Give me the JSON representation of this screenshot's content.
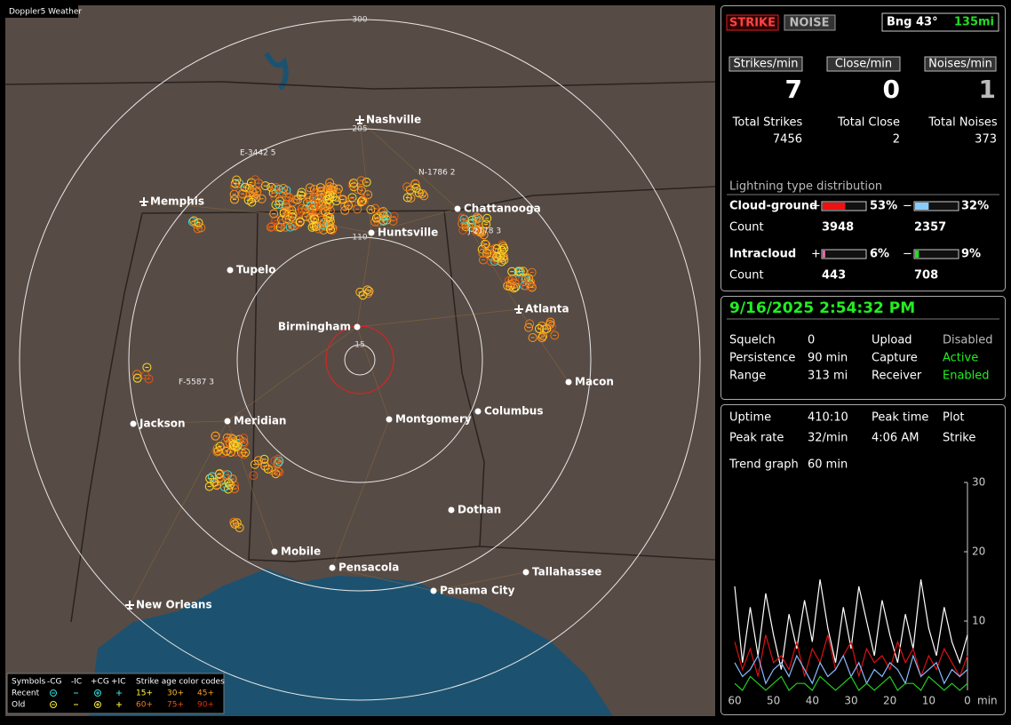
{
  "header": {
    "label": "Doppler5 Weather"
  },
  "map": {
    "rings": [
      "300",
      "205",
      "110",
      "15"
    ],
    "cities": [
      "Nashville",
      "Memphis",
      "Chattanooga",
      "Huntsville",
      "Tupelo",
      "Birmingham",
      "Atlanta",
      "Macon",
      "Jackson",
      "Meridian",
      "Montgomery",
      "Columbus",
      "Dothan",
      "Mobile",
      "Pensacola",
      "Tallahassee",
      "Panama City",
      "New Orleans"
    ],
    "cells": [
      "E-3442 5",
      "N-1786 2",
      "J-2178 3",
      "F-5587 3"
    ],
    "legend": {
      "symbols": "Symbols",
      "cols": [
        "-CG",
        "-IC",
        "+CG",
        "+IC"
      ],
      "age_title": "Strike age color codes",
      "rows": [
        {
          "label": "Recent",
          "ages": [
            "15+",
            "30+",
            "45+"
          ]
        },
        {
          "label": "Old",
          "ages": [
            "60+",
            "75+",
            "90+"
          ]
        }
      ]
    }
  },
  "panel": {
    "buttons": [
      "STRIKE",
      "NOISE"
    ],
    "bearing": "Bng 43°",
    "distance": "135mi",
    "rates": [
      {
        "label": "Strikes/min",
        "value": 7
      },
      {
        "label": "Close/min",
        "value": 0
      },
      {
        "label": "Noises/min",
        "value": 1
      }
    ],
    "totals": [
      {
        "label": "Total Strikes",
        "value": 7456
      },
      {
        "label": "Total Close",
        "value": 2
      },
      {
        "label": "Total Noises",
        "value": 373
      }
    ],
    "distribution": {
      "title": "Lightning type distribution",
      "count_label": "Count",
      "plus_sign": "+",
      "minus_sign": "−",
      "rows": [
        {
          "name": "Cloud-ground",
          "plus": {
            "value": 53,
            "label": "53%"
          },
          "minus": {
            "value": 32,
            "label": "32%"
          },
          "plus_count": 3948,
          "minus_count": 2357
        },
        {
          "name": "Intracloud",
          "plus": {
            "value": 6,
            "label": "6%"
          },
          "minus": {
            "value": 9,
            "label": "9%"
          },
          "plus_count": 443,
          "minus_count": 708
        }
      ]
    },
    "status": {
      "datetime": "9/16/2025 2:54:32 PM",
      "rows": [
        [
          "Squelch",
          "0",
          "Upload",
          "Disabled"
        ],
        [
          "Persistence",
          "90 min",
          "Capture",
          "Active"
        ],
        [
          "Range",
          "313 mi",
          "Receiver",
          "Enabled"
        ]
      ]
    },
    "trend_info": {
      "rows": [
        [
          "Uptime",
          "410:10",
          "Peak time",
          "Plot"
        ],
        [
          "Peak rate",
          "32/min",
          "4:06 AM",
          "Strike"
        ]
      ],
      "trend_label": "Trend graph",
      "trend_value": "60 min"
    }
  },
  "chart_data": {
    "type": "line",
    "x": [
      60,
      58,
      56,
      54,
      52,
      50,
      48,
      46,
      44,
      42,
      40,
      38,
      36,
      34,
      32,
      30,
      28,
      26,
      24,
      22,
      20,
      18,
      16,
      14,
      12,
      10,
      8,
      6,
      4,
      2,
      0
    ],
    "xlim": [
      60,
      0
    ],
    "ylim": [
      0,
      30
    ],
    "xticks": [
      60,
      50,
      40,
      30,
      20,
      10,
      0
    ],
    "yticks": [
      10,
      20,
      30
    ],
    "x_unit": "min",
    "series": [
      {
        "color": "#ffffff",
        "values": [
          15,
          4,
          12,
          5,
          14,
          8,
          3,
          11,
          6,
          13,
          7,
          16,
          9,
          4,
          12,
          6,
          15,
          10,
          5,
          13,
          8,
          4,
          11,
          6,
          16,
          9,
          5,
          12,
          7,
          4,
          8
        ]
      },
      {
        "color": "#dd1111",
        "values": [
          7,
          3,
          6,
          2,
          8,
          4,
          5,
          3,
          7,
          2,
          6,
          4,
          8,
          3,
          5,
          7,
          2,
          6,
          4,
          5,
          3,
          7,
          4,
          6,
          2,
          5,
          3,
          6,
          4,
          2,
          5
        ]
      },
      {
        "color": "#88bbff",
        "values": [
          4,
          2,
          3,
          5,
          1,
          3,
          4,
          2,
          5,
          3,
          1,
          4,
          2,
          3,
          5,
          2,
          4,
          1,
          3,
          2,
          4,
          3,
          1,
          5,
          2,
          3,
          4,
          1,
          3,
          2,
          3
        ]
      },
      {
        "color": "#22cc22",
        "values": [
          1,
          0,
          2,
          1,
          0,
          1,
          2,
          0,
          1,
          1,
          0,
          2,
          1,
          0,
          1,
          2,
          0,
          1,
          0,
          1,
          2,
          0,
          1,
          1,
          0,
          2,
          1,
          0,
          1,
          0,
          1
        ]
      }
    ]
  }
}
